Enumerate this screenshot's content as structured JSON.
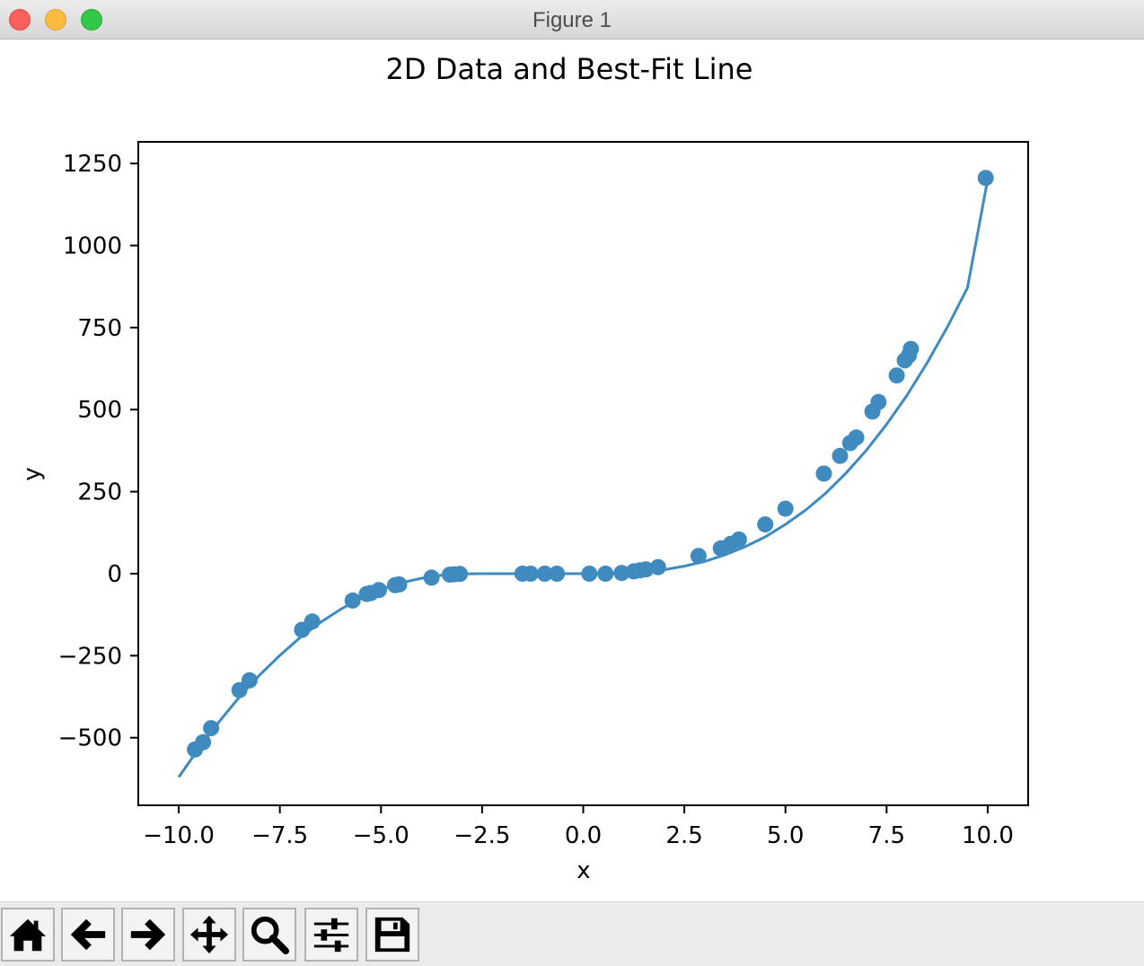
{
  "window": {
    "title": "Figure 1"
  },
  "toolbar": {
    "buttons": [
      {
        "name": "home",
        "icon": "home-icon"
      },
      {
        "name": "back",
        "icon": "arrow-left-icon"
      },
      {
        "name": "forward",
        "icon": "arrow-right-icon"
      },
      {
        "name": "pan",
        "icon": "move-icon"
      },
      {
        "name": "zoom",
        "icon": "magnifier-icon"
      },
      {
        "name": "configure-subplots",
        "icon": "sliders-icon"
      },
      {
        "name": "save",
        "icon": "floppy-disk-icon"
      }
    ]
  },
  "colors": {
    "series": "#3f8bc0",
    "axes": "#000000",
    "background": "#ffffff"
  },
  "chart_data": {
    "type": "scatter",
    "title": "2D Data and Best-Fit Line",
    "xlabel": "x",
    "ylabel": "y",
    "xlim": [
      -11,
      11
    ],
    "ylim": [
      -706,
      1316
    ],
    "xticks": [
      -10.0,
      -7.5,
      -5.0,
      -2.5,
      0.0,
      2.5,
      5.0,
      7.5,
      10.0
    ],
    "xtick_labels": [
      "−10.0",
      "−7.5",
      "−5.0",
      "−2.5",
      "0.0",
      "2.5",
      "5.0",
      "7.5",
      "10.0"
    ],
    "yticks": [
      -500,
      -250,
      0,
      250,
      500,
      750,
      1000,
      1250
    ],
    "ytick_labels": [
      "−500",
      "−250",
      "0",
      "250",
      "500",
      "750",
      "1000",
      "1250"
    ],
    "grid": false,
    "series": [
      {
        "kind": "points",
        "x": [
          -9.6,
          -9.4,
          -9.2,
          -8.5,
          -8.25,
          -6.95,
          -6.7,
          -5.7,
          -5.35,
          -5.25,
          -5.05,
          -4.65,
          -4.55,
          -3.75,
          -3.3,
          -3.2,
          -3.05,
          -1.5,
          -1.3,
          -0.95,
          -0.65,
          0.15,
          0.55,
          0.95,
          1.25,
          1.4,
          1.55,
          1.85,
          2.85,
          3.4,
          3.65,
          3.85,
          4.5,
          5.0,
          5.95,
          6.35,
          6.6,
          6.75,
          7.15,
          7.3,
          7.75,
          7.95,
          8.05,
          8.1,
          9.95
        ],
        "y": [
          -536,
          -514,
          -471,
          -355,
          -325,
          -171,
          -146,
          -82,
          -62,
          -59,
          -50,
          -35,
          -33,
          -12,
          -3,
          -2,
          -1,
          0,
          0,
          0,
          0,
          0,
          0,
          2,
          7,
          10,
          13,
          20,
          54,
          77,
          91,
          104,
          150,
          198,
          305,
          359,
          398,
          415,
          494,
          523,
          604,
          650,
          665,
          685,
          1206
        ]
      },
      {
        "kind": "fit-line",
        "x": [
          -10,
          -9.5,
          -9,
          -8.5,
          -8,
          -7.5,
          -7,
          -6.5,
          -6,
          -5.5,
          -5,
          -4.5,
          -4,
          -3.5,
          -3,
          -2.5,
          -2,
          -1.5,
          -1,
          -0.5,
          0,
          0.5,
          1,
          1.5,
          2,
          2.5,
          3,
          3.5,
          4,
          4.5,
          5,
          5.5,
          6,
          6.5,
          7,
          7.5,
          8,
          8.5,
          9,
          9.5,
          10
        ],
        "y": [
          -620,
          -532,
          -451,
          -376,
          -309,
          -249,
          -195,
          -149,
          -109,
          -75,
          -48,
          -28,
          -14,
          -5,
          -1,
          0,
          0,
          0,
          0,
          0,
          0,
          0,
          2,
          6,
          12,
          23,
          37,
          57,
          82,
          112,
          150,
          194,
          246,
          307,
          376,
          455,
          543,
          642,
          751,
          871,
          1203
        ]
      }
    ]
  }
}
